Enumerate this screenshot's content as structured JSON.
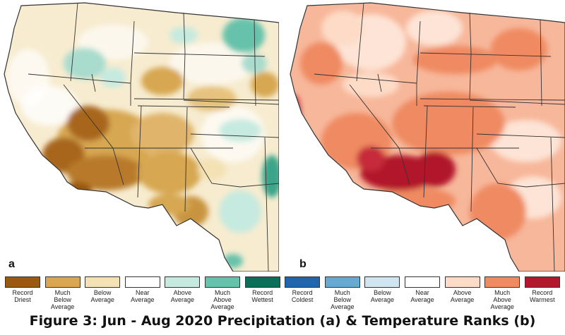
{
  "panels": [
    {
      "id": "a",
      "label": "a"
    },
    {
      "id": "b",
      "label": "b"
    }
  ],
  "legend": [
    {
      "label": "Record\nDriest",
      "color": "#99590f"
    },
    {
      "label": "Much\nBelow\nAverage",
      "color": "#d7a751"
    },
    {
      "label": "Below\nAverage",
      "color": "#f4e2b4"
    },
    {
      "label": "Near\nAverage",
      "color": "#ffffff"
    },
    {
      "label": "Above\nAverage",
      "color": "#c6eadf"
    },
    {
      "label": "Much\nAbove\nAverage",
      "color": "#66c2aa"
    },
    {
      "label": "Record\nWettest",
      "color": "#0b6e59"
    },
    {
      "label": "Record\nColdest",
      "color": "#2166ac"
    },
    {
      "label": "Much\nBelow\nAverage",
      "color": "#67a9cf"
    },
    {
      "label": "Below\nAverage",
      "color": "#d1e5f0"
    },
    {
      "label": "Near\nAverage",
      "color": "#ffffff"
    },
    {
      "label": "Above\nAverage",
      "color": "#fddbc7"
    },
    {
      "label": "Much\nAbove\nAverage",
      "color": "#ef8a62"
    },
    {
      "label": "Record\nWarmest",
      "color": "#b2182b"
    }
  ],
  "caption": "Figure 3: Jun - Aug 2020 Precipitation (a) & Temperature Ranks (b)"
}
